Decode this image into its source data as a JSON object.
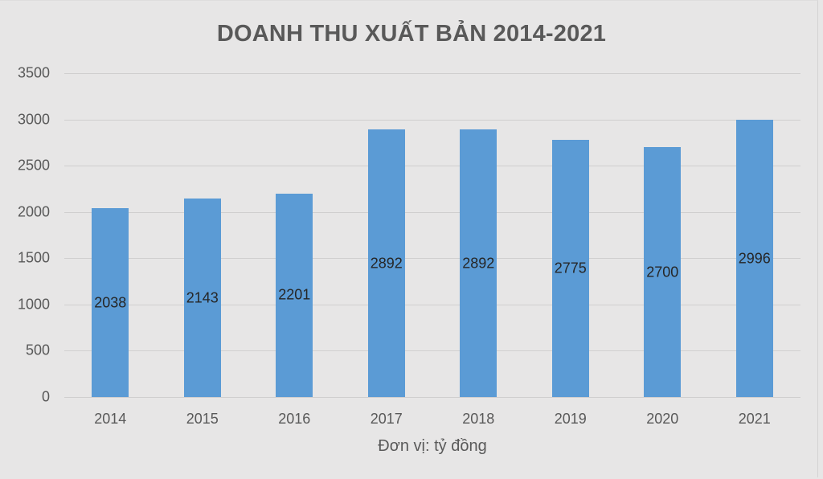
{
  "chart_data": {
    "type": "bar",
    "title": "DOANH THU XUẤT BẢN 2014-2021",
    "xlabel": "Đơn vị: tỷ đồng",
    "ylabel": "",
    "categories": [
      "2014",
      "2015",
      "2016",
      "2017",
      "2018",
      "2019",
      "2020",
      "2021"
    ],
    "values": [
      2038,
      2143,
      2201,
      2892,
      2892,
      2775,
      2700,
      2996
    ],
    "data_labels": [
      "2038",
      "2143",
      "2201",
      "2892",
      "2892",
      "2775",
      "2700",
      "2996"
    ],
    "ylim": [
      0,
      3500
    ],
    "yticks": [
      "0",
      "500",
      "1000",
      "1500",
      "2000",
      "2500",
      "3000",
      "3500"
    ],
    "grid": true,
    "legend": null,
    "bar_color": "#5b9bd5",
    "background_color": "#e7e6e6"
  }
}
